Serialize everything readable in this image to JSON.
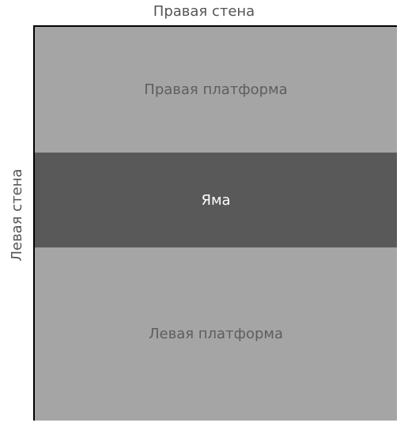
{
  "walls": {
    "top": "Правая стена",
    "left": "Левая стена"
  },
  "zones": {
    "right_platform": "Правая платформа",
    "pit": "Яма",
    "left_platform": "Левая платформа"
  },
  "colors": {
    "platform_fill": "#a5a5a5",
    "pit_fill": "#595959",
    "wall_line": "#000000",
    "label_text": "#555555",
    "platform_text": "#5e5e5e",
    "pit_text": "#ffffff"
  }
}
